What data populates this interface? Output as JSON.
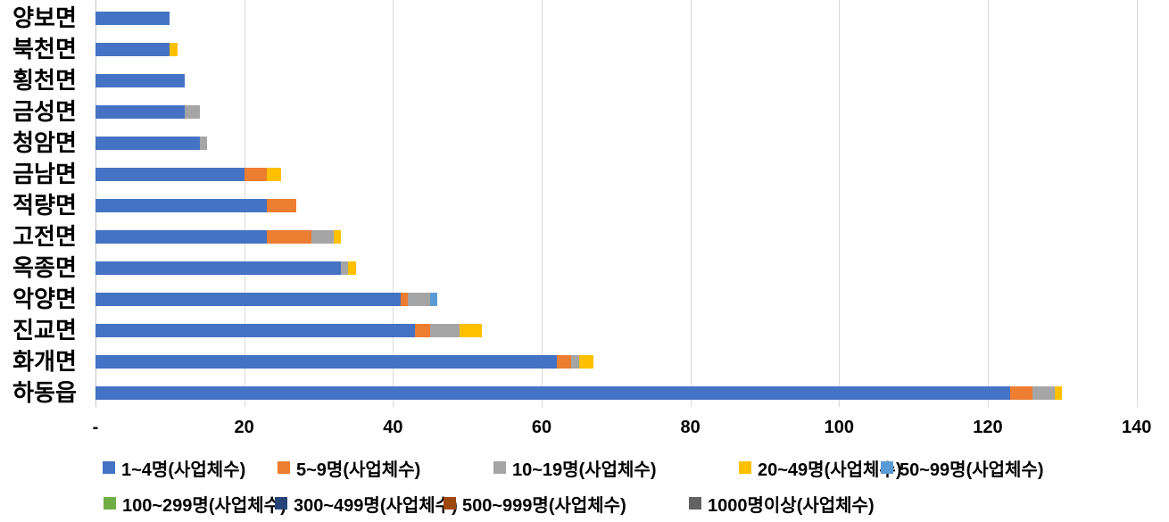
{
  "chart_data": {
    "type": "bar",
    "orientation": "horizontal",
    "stacked": true,
    "title": "",
    "xlabel": "",
    "ylabel": "",
    "categories_order": "top-to-bottom",
    "categories": [
      "양보면",
      "북천면",
      "횡천면",
      "금성면",
      "청암면",
      "금남면",
      "적량면",
      "고전면",
      "옥종면",
      "악양면",
      "진교면",
      "화개면",
      "하동읍"
    ],
    "series": [
      {
        "name": "1~4명(사업체수)",
        "color": "#4472C4",
        "values": [
          10,
          10,
          12,
          12,
          14,
          20,
          23,
          23,
          33,
          41,
          43,
          62,
          123
        ]
      },
      {
        "name": "5~9명(사업체수)",
        "color": "#ED7D31",
        "values": [
          0,
          0,
          0,
          0,
          0,
          3,
          4,
          6,
          0,
          1,
          2,
          2,
          3
        ]
      },
      {
        "name": "10~19명(사업체수)",
        "color": "#A5A5A5",
        "values": [
          0,
          0,
          0,
          2,
          1,
          0,
          0,
          3,
          1,
          3,
          4,
          1,
          3
        ]
      },
      {
        "name": "20~49명(사업체수)",
        "color": "#FFC000",
        "values": [
          0,
          1,
          0,
          0,
          0,
          2,
          0,
          1,
          1,
          0,
          3,
          2,
          1
        ]
      },
      {
        "name": "50~99명(사업체수)",
        "color": "#5B9BD5",
        "values": [
          0,
          0,
          0,
          0,
          0,
          0,
          0,
          0,
          0,
          1,
          0,
          0,
          0
        ]
      },
      {
        "name": "100~299명(사업체수)",
        "color": "#70AD47",
        "values": [
          0,
          0,
          0,
          0,
          0,
          0,
          0,
          0,
          0,
          0,
          0,
          0,
          0
        ]
      },
      {
        "name": "300~499명(사업체수)",
        "color": "#264478",
        "values": [
          0,
          0,
          0,
          0,
          0,
          0,
          0,
          0,
          0,
          0,
          0,
          0,
          0
        ]
      },
      {
        "name": "500~999명(사업체수)",
        "color": "#9E480E",
        "values": [
          0,
          0,
          0,
          0,
          0,
          0,
          0,
          0,
          0,
          0,
          0,
          0,
          0
        ]
      },
      {
        "name": "1000명이상(사업체수)",
        "color": "#636363",
        "values": [
          0,
          0,
          0,
          0,
          0,
          0,
          0,
          0,
          0,
          0,
          0,
          0,
          0
        ]
      }
    ],
    "category_totals": [
      10,
      11,
      12,
      14,
      15,
      25,
      27,
      33,
      35,
      46,
      52,
      67,
      130
    ],
    "x_axis": {
      "min": 0,
      "max": 140,
      "tick_step": 20,
      "tick_labels": [
        "-",
        "20",
        "40",
        "60",
        "80",
        "100",
        "120",
        "140"
      ]
    },
    "grid": true,
    "legend_position": "bottom"
  },
  "style": {
    "background": "#FFFFFF",
    "gridline_color": "#D9D9D9",
    "axis_line_color": "#C5C5C5",
    "text_color": "#000000"
  }
}
